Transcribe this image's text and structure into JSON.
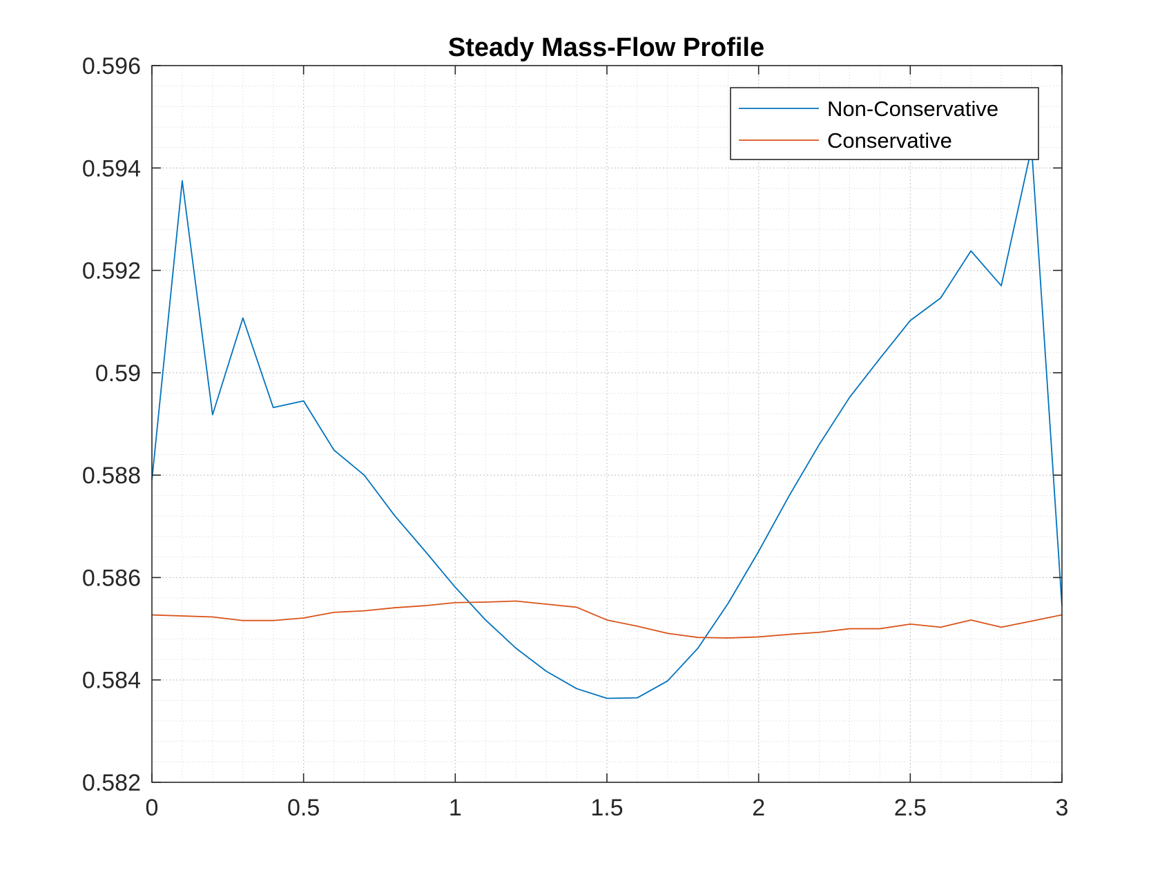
{
  "chart_data": {
    "type": "line",
    "title": "Steady Mass-Flow Profile",
    "xlabel": "",
    "ylabel": "",
    "xlim": [
      0,
      3
    ],
    "ylim": [
      0.582,
      0.596
    ],
    "x_ticks": [
      0,
      0.5,
      1,
      1.5,
      2,
      2.5,
      3
    ],
    "x_tick_labels": [
      "0",
      "0.5",
      "1",
      "1.5",
      "2",
      "2.5",
      "3"
    ],
    "y_ticks": [
      0.582,
      0.584,
      0.586,
      0.588,
      0.59,
      0.592,
      0.594,
      0.596
    ],
    "y_tick_labels": [
      "0.582",
      "0.584",
      "0.586",
      "0.588",
      "0.59",
      "0.592",
      "0.594",
      "0.596"
    ],
    "grid": true,
    "minor_grid": true,
    "legend_position": "top-right",
    "x": [
      0,
      0.1,
      0.2,
      0.3,
      0.4,
      0.5,
      0.6,
      0.7,
      0.8,
      0.9,
      1.0,
      1.1,
      1.2,
      1.3,
      1.4,
      1.5,
      1.6,
      1.7,
      1.8,
      1.9,
      2.0,
      2.1,
      2.2,
      2.3,
      2.4,
      2.5,
      2.6,
      2.7,
      2.8,
      2.9,
      3.0
    ],
    "series": [
      {
        "name": "Non-Conservative",
        "color": "#0072BD",
        "values": [
          0.5879,
          0.59375,
          0.58918,
          0.59107,
          0.58932,
          0.58945,
          0.58849,
          0.588,
          0.58721,
          0.58652,
          0.58581,
          0.58517,
          0.58462,
          0.58417,
          0.58383,
          0.58364,
          0.58365,
          0.58398,
          0.58462,
          0.5855,
          0.58651,
          0.58759,
          0.5886,
          0.58952,
          0.59028,
          0.59102,
          0.59146,
          0.59238,
          0.5917,
          0.5944,
          0.58545
        ]
      },
      {
        "name": "Conservative",
        "color": "#D95319",
        "values": [
          0.58527,
          0.58525,
          0.58523,
          0.58516,
          0.58516,
          0.58521,
          0.58532,
          0.58535,
          0.58541,
          0.58545,
          0.58551,
          0.58552,
          0.58554,
          0.58548,
          0.58542,
          0.58517,
          0.58505,
          0.58491,
          0.58483,
          0.58482,
          0.58484,
          0.58489,
          0.58493,
          0.585,
          0.585,
          0.58509,
          0.58503,
          0.58517,
          0.58503,
          0.58515,
          0.58527
        ]
      }
    ]
  }
}
